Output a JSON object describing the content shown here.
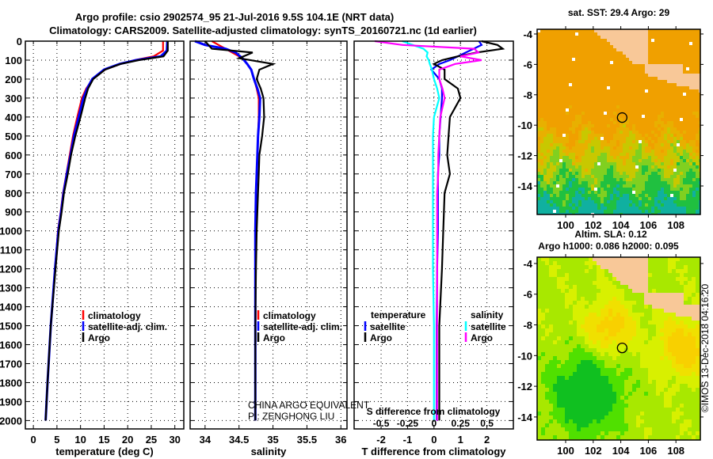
{
  "title_line1": "Argo profile: csio 2902574_95 21-Jul-2016 9.5S 104.1E (NRT data)",
  "title_line2": "Climatology: CARS2009. Satellite-adjusted climatology: synTS_20160721.nc (1d earlier)",
  "colors": {
    "climatology": "#ff0000",
    "satellite": "#0000ff",
    "argo": "#000000",
    "sal_satellite": "#00ffff",
    "sal_argo": "#ff00ff",
    "land": "#f8c898"
  },
  "chart_data": [
    {
      "type": "line",
      "title": "",
      "xlabel": "temperature (deg C)",
      "ylabel": "",
      "xlim": [
        -1.7,
        31.9
      ],
      "ylim": [
        2045,
        0
      ],
      "grid": true,
      "xticks": [
        0,
        5,
        10,
        15,
        20,
        25,
        30
      ],
      "yticks": [
        0,
        100,
        200,
        300,
        400,
        500,
        600,
        700,
        800,
        900,
        1000,
        1100,
        1200,
        1300,
        1400,
        1500,
        1600,
        1700,
        1800,
        1900,
        2000
      ],
      "legend": [
        "climatology",
        "satellite-adj. clim.",
        "Argo"
      ],
      "legend_placement": "lower-center",
      "depth": [
        0,
        50,
        80,
        100,
        120,
        150,
        200,
        250,
        300,
        400,
        500,
        600,
        700,
        800,
        900,
        1000,
        1200,
        1500,
        1800,
        2000
      ],
      "series": [
        {
          "name": "climatology",
          "values": [
            27.5,
            27.5,
            25.5,
            21.5,
            18.5,
            15.2,
            12.6,
            11.2,
            10.3,
            9.3,
            8.4,
            7.7,
            7.0,
            6.3,
            5.8,
            5.2,
            4.6,
            3.7,
            3.0,
            2.6
          ]
        },
        {
          "name": "satellite-adj. clim.",
          "values": [
            28.4,
            28.3,
            27.0,
            21.8,
            18.3,
            15.0,
            12.5,
            11.4,
            10.6,
            9.6,
            8.6,
            7.9,
            7.1,
            6.4,
            5.9,
            5.3,
            4.6,
            3.7,
            3.0,
            2.6
          ]
        },
        {
          "name": "Argo",
          "values": [
            28.5,
            28.5,
            27.6,
            22.3,
            18.5,
            15.2,
            12.7,
            11.6,
            11.0,
            10.0,
            8.9,
            8.0,
            7.3,
            6.5,
            6.0,
            5.4,
            4.7,
            3.7,
            3.0,
            2.6
          ]
        }
      ]
    },
    {
      "type": "line",
      "xlabel": "salinity",
      "xlim": [
        33.78,
        36.09
      ],
      "ylim": [
        2045,
        0
      ],
      "grid": true,
      "xticks": [
        34,
        34.5,
        35,
        35.5,
        36
      ],
      "legend": [
        "climatology",
        "satellite-adj. clim.",
        "Argo"
      ],
      "legend_placement": "lower-center",
      "annotations": [
        "CHINA ARGO EQUIVALENT",
        "PI: ZENGHONG LIU"
      ],
      "depth": [
        0,
        20,
        40,
        60,
        90,
        120,
        150,
        200,
        250,
        300,
        400,
        500,
        600,
        700,
        800,
        1000,
        1200,
        1500,
        2000
      ],
      "series": [
        {
          "name": "climatology",
          "values": [
            34.1,
            34.2,
            34.3,
            34.4,
            34.55,
            34.62,
            34.68,
            34.72,
            34.76,
            34.79,
            34.79,
            34.78,
            34.77,
            34.76,
            34.75,
            34.74,
            34.74,
            34.74,
            34.74
          ]
        },
        {
          "name": "satellite-adj. clim.",
          "values": [
            33.85,
            34.0,
            34.3,
            34.45,
            34.55,
            34.62,
            34.68,
            34.72,
            34.77,
            34.81,
            34.8,
            34.78,
            34.77,
            34.76,
            34.75,
            34.74,
            34.74,
            34.74,
            34.74
          ]
        },
        {
          "name": "Argo",
          "values": [
            34.0,
            34.05,
            34.1,
            34.7,
            34.5,
            35.0,
            34.8,
            34.76,
            34.82,
            34.86,
            34.87,
            34.84,
            34.8,
            34.79,
            34.78,
            34.76,
            34.75,
            34.74,
            34.74
          ]
        }
      ]
    },
    {
      "type": "line",
      "xlabel": "T difference from climatology",
      "x2label": "S difference from climatology",
      "xlim": [
        -3.02,
        3.0
      ],
      "x2lim": [
        -0.755,
        0.75
      ],
      "ylim": [
        2045,
        0
      ],
      "grid": true,
      "xticks": [
        -2,
        -1,
        0,
        1,
        2
      ],
      "x2ticks": [
        -0.5,
        -0.25,
        0,
        0.25,
        0.5
      ],
      "x2ticklabels": [
        "-0.5",
        "-0.25",
        "0",
        "0.25",
        "0.5"
      ],
      "legend": {
        "temperature": [
          "satellite",
          "Argo"
        ],
        "salinity": [
          "satellite",
          "Argo"
        ]
      },
      "legend_titles": {
        "temperature": "temperature",
        "salinity": "salinity"
      },
      "legend_placement": "lower-center",
      "depth": [
        0,
        20,
        40,
        60,
        80,
        100,
        120,
        150,
        200,
        250,
        300,
        400,
        500,
        600,
        700,
        800,
        1000,
        1200,
        1500,
        2000
      ],
      "series": [
        {
          "name": "temperature satellite",
          "axis": "T",
          "values": [
            1.7,
            1.8,
            1.5,
            1.2,
            0.9,
            0.6,
            0.2,
            -0.1,
            0.2,
            0.3,
            0.3,
            0.25,
            0.2,
            0.2,
            0.15,
            0.15,
            0.15,
            0.12,
            0.1,
            0.1
          ]
        },
        {
          "name": "temperature Argo",
          "axis": "T",
          "values": [
            1.8,
            2.4,
            2.6,
            1.6,
            0.9,
            0.3,
            0.0,
            0.4,
            0.4,
            0.9,
            1.0,
            0.6,
            0.55,
            0.5,
            0.6,
            0.4,
            0.35,
            0.3,
            0.2,
            0.2
          ]
        },
        {
          "name": "salinity satellite",
          "axis": "S",
          "values": [
            -0.3,
            -0.2,
            -0.1,
            -0.06,
            -0.07,
            -0.05,
            -0.04,
            -0.02,
            0.0,
            0.03,
            0.05,
            0.0,
            -0.01,
            -0.01,
            -0.01,
            -0.01,
            -0.01,
            -0.01,
            0.0,
            0.0
          ]
        },
        {
          "name": "salinity Argo",
          "axis": "S",
          "values": [
            -0.56,
            -0.3,
            0.38,
            0.42,
            0.25,
            0.45,
            0.2,
            0.05,
            0.05,
            0.08,
            0.1,
            0.06,
            0.05,
            0.04,
            0.04,
            0.03,
            0.03,
            0.03,
            0.03,
            0.03
          ]
        }
      ]
    },
    {
      "type": "heatmap",
      "title": "sat. SST: 29.4 Argo: 29",
      "xticks": [
        100,
        102,
        104,
        106,
        108
      ],
      "yticks": [
        -4,
        -6,
        -8,
        -10,
        -12,
        -14
      ],
      "xlim": [
        97.93,
        109.77
      ],
      "ylim": [
        -15.875,
        -3.69
      ],
      "argo_position": {
        "lon": 104.1,
        "lat": -9.5
      }
    },
    {
      "type": "heatmap",
      "title_line1": "Altim. SLA: 0.12",
      "title_line2": "Argo h1000: 0.086 h2000: 0.095",
      "xticks": [
        100,
        102,
        104,
        106,
        108
      ],
      "yticks": [
        -4,
        -6,
        -8,
        -10,
        -12,
        -14
      ],
      "xlim": [
        97.93,
        109.77
      ],
      "ylim": [
        -15.5,
        -3.59
      ],
      "argo_position": {
        "lon": 104.1,
        "lat": -9.5
      }
    }
  ],
  "copyright": "©IMOS 13-Dec-2018 04:16:20"
}
